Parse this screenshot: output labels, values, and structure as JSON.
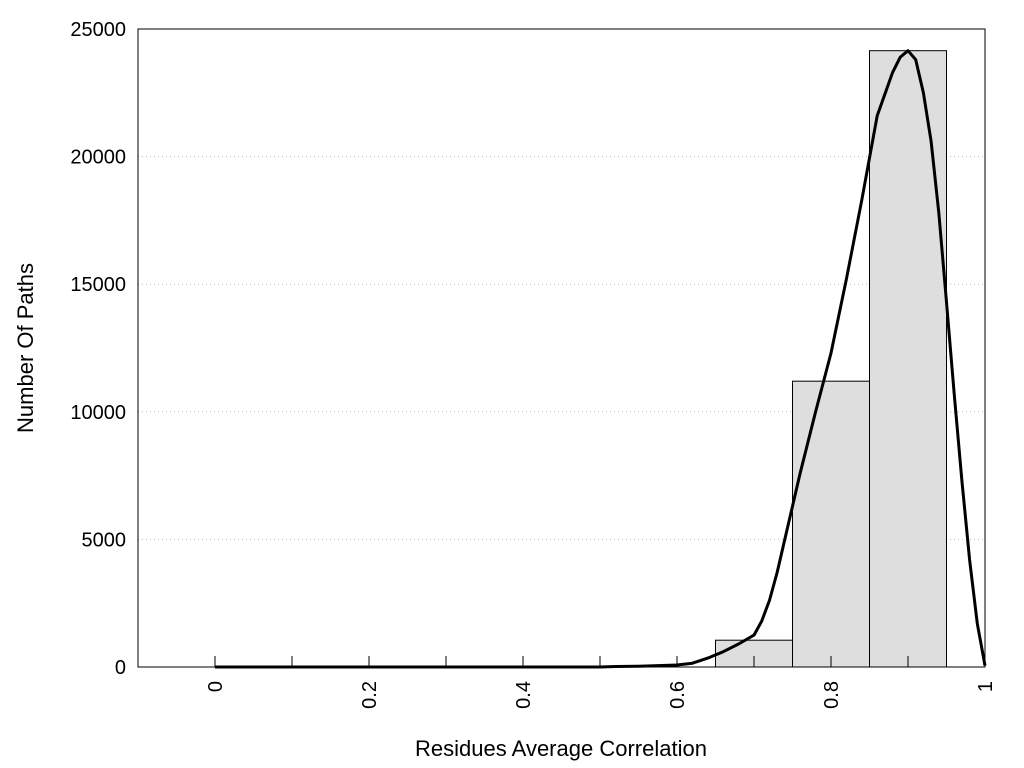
{
  "chart_data": {
    "type": "bar",
    "title": "",
    "xlabel": "Residues Average Correlation",
    "ylabel": "Number Of Paths",
    "xlim": [
      -0.1,
      1.0
    ],
    "ylim": [
      0,
      25000
    ],
    "grid": {
      "y": true,
      "x": false,
      "style": "dotted"
    },
    "x_ticks": [
      "0",
      "0.2",
      "0.4",
      "0.6",
      "0.8",
      "1"
    ],
    "x_tick_values": [
      0,
      0.2,
      0.4,
      0.6,
      0.8,
      1.0
    ],
    "x_minor_ticks": [
      0.1,
      0.3,
      0.5,
      0.7,
      0.9
    ],
    "y_ticks": [
      "0",
      "5000",
      "10000",
      "15000",
      "20000",
      "25000"
    ],
    "y_tick_values": [
      0,
      5000,
      10000,
      15000,
      20000,
      25000
    ],
    "bar_width": 0.1,
    "bars": [
      {
        "x": 0.0,
        "value": 0
      },
      {
        "x": 0.1,
        "value": 0
      },
      {
        "x": 0.2,
        "value": 0
      },
      {
        "x": 0.3,
        "value": 0
      },
      {
        "x": 0.4,
        "value": 0
      },
      {
        "x": 0.5,
        "value": 0
      },
      {
        "x": 0.6,
        "value": 0
      },
      {
        "x": 0.7,
        "value": 1050
      },
      {
        "x": 0.8,
        "value": 11200
      },
      {
        "x": 0.9,
        "value": 24150
      }
    ],
    "curve": {
      "x": [
        0.0,
        0.1,
        0.2,
        0.3,
        0.4,
        0.5,
        0.52,
        0.55,
        0.58,
        0.6,
        0.62,
        0.64,
        0.66,
        0.68,
        0.7,
        0.71,
        0.72,
        0.73,
        0.74,
        0.75,
        0.76,
        0.78,
        0.8,
        0.82,
        0.84,
        0.86,
        0.88,
        0.89,
        0.9,
        0.91,
        0.92,
        0.93,
        0.94,
        0.95,
        0.96,
        0.97,
        0.98,
        0.99,
        1.0
      ],
      "y": [
        0,
        0,
        0,
        0,
        0,
        0,
        20,
        30,
        60,
        80,
        150,
        350,
        600,
        900,
        1250,
        1800,
        2600,
        3700,
        5000,
        6300,
        7600,
        10000,
        12300,
        15200,
        18300,
        21600,
        23300,
        23900,
        24150,
        23800,
        22500,
        20600,
        17800,
        14300,
        10700,
        7300,
        4200,
        1700,
        50
      ]
    },
    "colors": {
      "bar_fill": "#dedede",
      "bar_stroke": "#000000",
      "curve": "#000000",
      "grid": "#b8b8b8"
    }
  }
}
